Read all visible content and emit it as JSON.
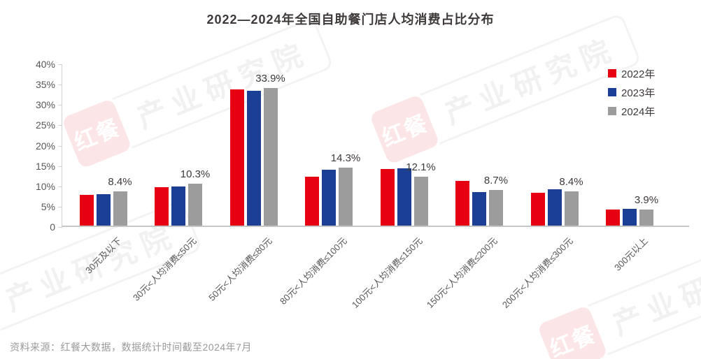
{
  "title": "2022—2024年全国自助餐门店人均消费占比分布",
  "source_note": "资料来源：红餐大数据，数据统计时间截至2024年7月",
  "watermark": {
    "logo": "红餐",
    "text": "产业研究院"
  },
  "colors": {
    "red_2022": "#e60012",
    "blue_2023": "#1b3f94",
    "gray_2024": "#9c9c9c",
    "axis_text": "#595757",
    "label_text": "#3e3a39"
  },
  "chart_data": {
    "type": "bar",
    "title": "2022—2024年全国自助餐门店人均消费占比分布",
    "categories": [
      "30元及以下",
      "30元<人均消费≤50元",
      "50元<人均消费≤80元",
      "80元<人均消费≤100元",
      "100元<人均消费≤150元",
      "150元<人均消费≤200元",
      "200元<人均消费≤300元",
      "300元以上"
    ],
    "series": [
      {
        "name": "2022年",
        "color": "#e60012",
        "values": [
          7.5,
          9.5,
          33.4,
          12.1,
          13.9,
          11.0,
          8.1,
          3.9
        ]
      },
      {
        "name": "2023年",
        "color": "#1b3f94",
        "values": [
          7.8,
          9.7,
          33.1,
          13.8,
          14.1,
          8.2,
          8.9,
          4.2
        ]
      },
      {
        "name": "2024年",
        "color": "#9c9c9c",
        "values": [
          8.4,
          10.3,
          33.9,
          14.3,
          12.1,
          8.7,
          8.4,
          3.9
        ],
        "labels": [
          "8.4%",
          "10.3%",
          "33.9%",
          "14.3%",
          "12.1%",
          "8.7%",
          "8.4%",
          "3.9%"
        ]
      }
    ],
    "xlabel": "",
    "ylabel": "",
    "ylim": [
      0,
      40
    ],
    "yticks": [
      "0",
      "5%",
      "10%",
      "15%",
      "20%",
      "25%",
      "30%",
      "35%",
      "40%"
    ],
    "ytick_values": [
      0,
      5,
      10,
      15,
      20,
      25,
      30,
      35,
      40
    ],
    "grid": false,
    "legend_position": "top-right",
    "labeled_series": "2024年"
  }
}
